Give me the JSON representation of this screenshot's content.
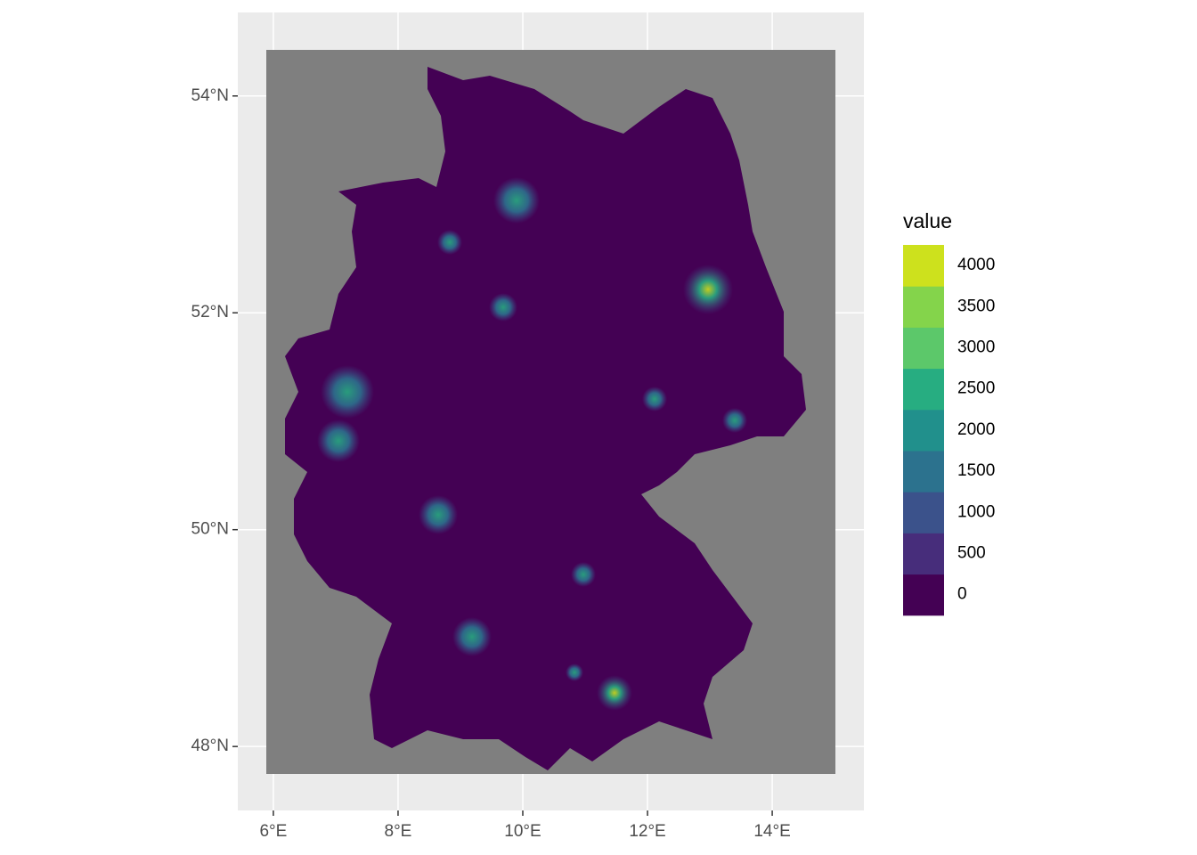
{
  "chart_data": {
    "type": "raster-map",
    "xlim": [
      5.43,
      15.47
    ],
    "ylim": [
      47.41,
      54.77
    ],
    "xticks": [
      {
        "value": 6,
        "label": "6°E"
      },
      {
        "value": 8,
        "label": "8°E"
      },
      {
        "value": 10,
        "label": "10°E"
      },
      {
        "value": 12,
        "label": "12°E"
      },
      {
        "value": 14,
        "label": "14°E"
      }
    ],
    "yticks": [
      {
        "value": 48,
        "label": "48°N"
      },
      {
        "value": 50,
        "label": "50°N"
      },
      {
        "value": 52,
        "label": "52°N"
      },
      {
        "value": 54,
        "label": "54°N"
      }
    ],
    "grid": true,
    "legend": {
      "title": "value",
      "position": "right",
      "bins": [
        {
          "value": 0,
          "color": "#440154"
        },
        {
          "value": 500,
          "color": "#472d7b"
        },
        {
          "value": 1000,
          "color": "#3b528b"
        },
        {
          "value": 1500,
          "color": "#2c728e"
        },
        {
          "value": 2000,
          "color": "#21908c"
        },
        {
          "value": 2500,
          "color": "#27ad81"
        },
        {
          "value": 3000,
          "color": "#5cc86a"
        },
        {
          "value": 3500,
          "color": "#84d44b"
        },
        {
          "value": 4000,
          "color": "#cde11d"
        }
      ]
    }
  }
}
